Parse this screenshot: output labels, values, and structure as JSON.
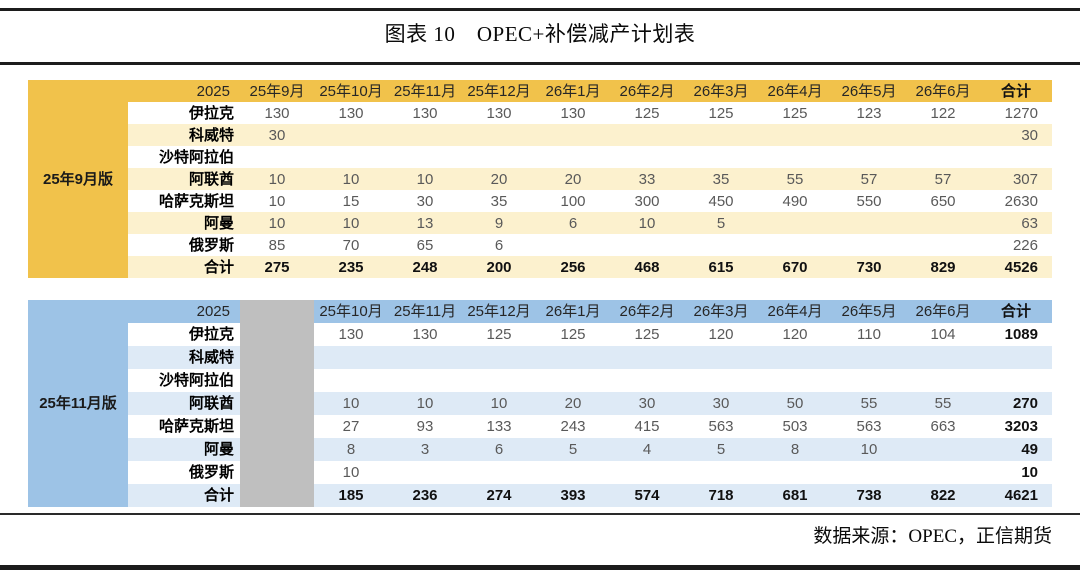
{
  "title": "图表 10　OPEC+补偿减产计划表",
  "source_note": "数据来源：OPEC，正信期货",
  "colors": {
    "table1_accent": "#f1c24b",
    "table1_stripe": "#fcf1ce",
    "table2_accent": "#9dc3e6",
    "table2_stripe": "#deeaf6",
    "grayed_column": "#bfbfbf",
    "rule": "#1c1c1c"
  },
  "tables": [
    {
      "version_label": "25年9月版",
      "year_header": "2025",
      "total_header": "合计",
      "gray_column_index": null,
      "months": [
        "25年9月",
        "25年10月",
        "25年11月",
        "25年12月",
        "26年1月",
        "26年2月",
        "26年3月",
        "26年4月",
        "26年5月",
        "26年6月"
      ],
      "rows": [
        {
          "label": "伊拉克",
          "values": [
            "130",
            "130",
            "130",
            "130",
            "130",
            "125",
            "125",
            "125",
            "123",
            "122"
          ],
          "total": "1270"
        },
        {
          "label": "科威特",
          "values": [
            "30",
            "",
            "",
            "",
            "",
            "",
            "",
            "",
            "",
            ""
          ],
          "total": "30"
        },
        {
          "label": "沙特阿拉伯",
          "values": [
            "",
            "",
            "",
            "",
            "",
            "",
            "",
            "",
            "",
            ""
          ],
          "total": ""
        },
        {
          "label": "阿联酋",
          "values": [
            "10",
            "10",
            "10",
            "20",
            "20",
            "33",
            "35",
            "55",
            "57",
            "57"
          ],
          "total": "307"
        },
        {
          "label": "哈萨克斯坦",
          "values": [
            "10",
            "15",
            "30",
            "35",
            "100",
            "300",
            "450",
            "490",
            "550",
            "650"
          ],
          "total": "2630"
        },
        {
          "label": "阿曼",
          "values": [
            "10",
            "10",
            "13",
            "9",
            "6",
            "10",
            "5",
            "",
            "",
            ""
          ],
          "total": "63"
        },
        {
          "label": "俄罗斯",
          "values": [
            "85",
            "70",
            "65",
            "6",
            "",
            "",
            "",
            "",
            "",
            ""
          ],
          "total": "226"
        }
      ],
      "total_row": {
        "label": "合计",
        "values": [
          "275",
          "235",
          "248",
          "200",
          "256",
          "468",
          "615",
          "670",
          "730",
          "829"
        ],
        "total": "4526"
      }
    },
    {
      "version_label": "25年11月版",
      "year_header": "2025",
      "total_header": "合计",
      "gray_column_index": 0,
      "months": [
        "",
        "25年10月",
        "25年11月",
        "25年12月",
        "26年1月",
        "26年2月",
        "26年3月",
        "26年4月",
        "26年5月",
        "26年6月"
      ],
      "rows": [
        {
          "label": "伊拉克",
          "values": [
            "",
            "130",
            "130",
            "125",
            "125",
            "125",
            "120",
            "120",
            "110",
            "104"
          ],
          "total": "1089"
        },
        {
          "label": "科威特",
          "values": [
            "",
            "",
            "",
            "",
            "",
            "",
            "",
            "",
            "",
            ""
          ],
          "total": ""
        },
        {
          "label": "沙特阿拉伯",
          "values": [
            "",
            "",
            "",
            "",
            "",
            "",
            "",
            "",
            "",
            ""
          ],
          "total": ""
        },
        {
          "label": "阿联酋",
          "values": [
            "",
            "10",
            "10",
            "10",
            "20",
            "30",
            "30",
            "50",
            "55",
            "55"
          ],
          "total": "270"
        },
        {
          "label": "哈萨克斯坦",
          "values": [
            "",
            "27",
            "93",
            "133",
            "243",
            "415",
            "563",
            "503",
            "563",
            "663"
          ],
          "total": "3203"
        },
        {
          "label": "阿曼",
          "values": [
            "",
            "8",
            "3",
            "6",
            "5",
            "4",
            "5",
            "8",
            "10",
            ""
          ],
          "total": "49"
        },
        {
          "label": "俄罗斯",
          "values": [
            "",
            "10",
            "",
            "",
            "",
            "",
            "",
            "",
            "",
            ""
          ],
          "total": "10"
        }
      ],
      "total_row": {
        "label": "合计",
        "values": [
          "",
          "185",
          "236",
          "274",
          "393",
          "574",
          "718",
          "681",
          "738",
          "822"
        ],
        "total": "4621"
      }
    }
  ]
}
